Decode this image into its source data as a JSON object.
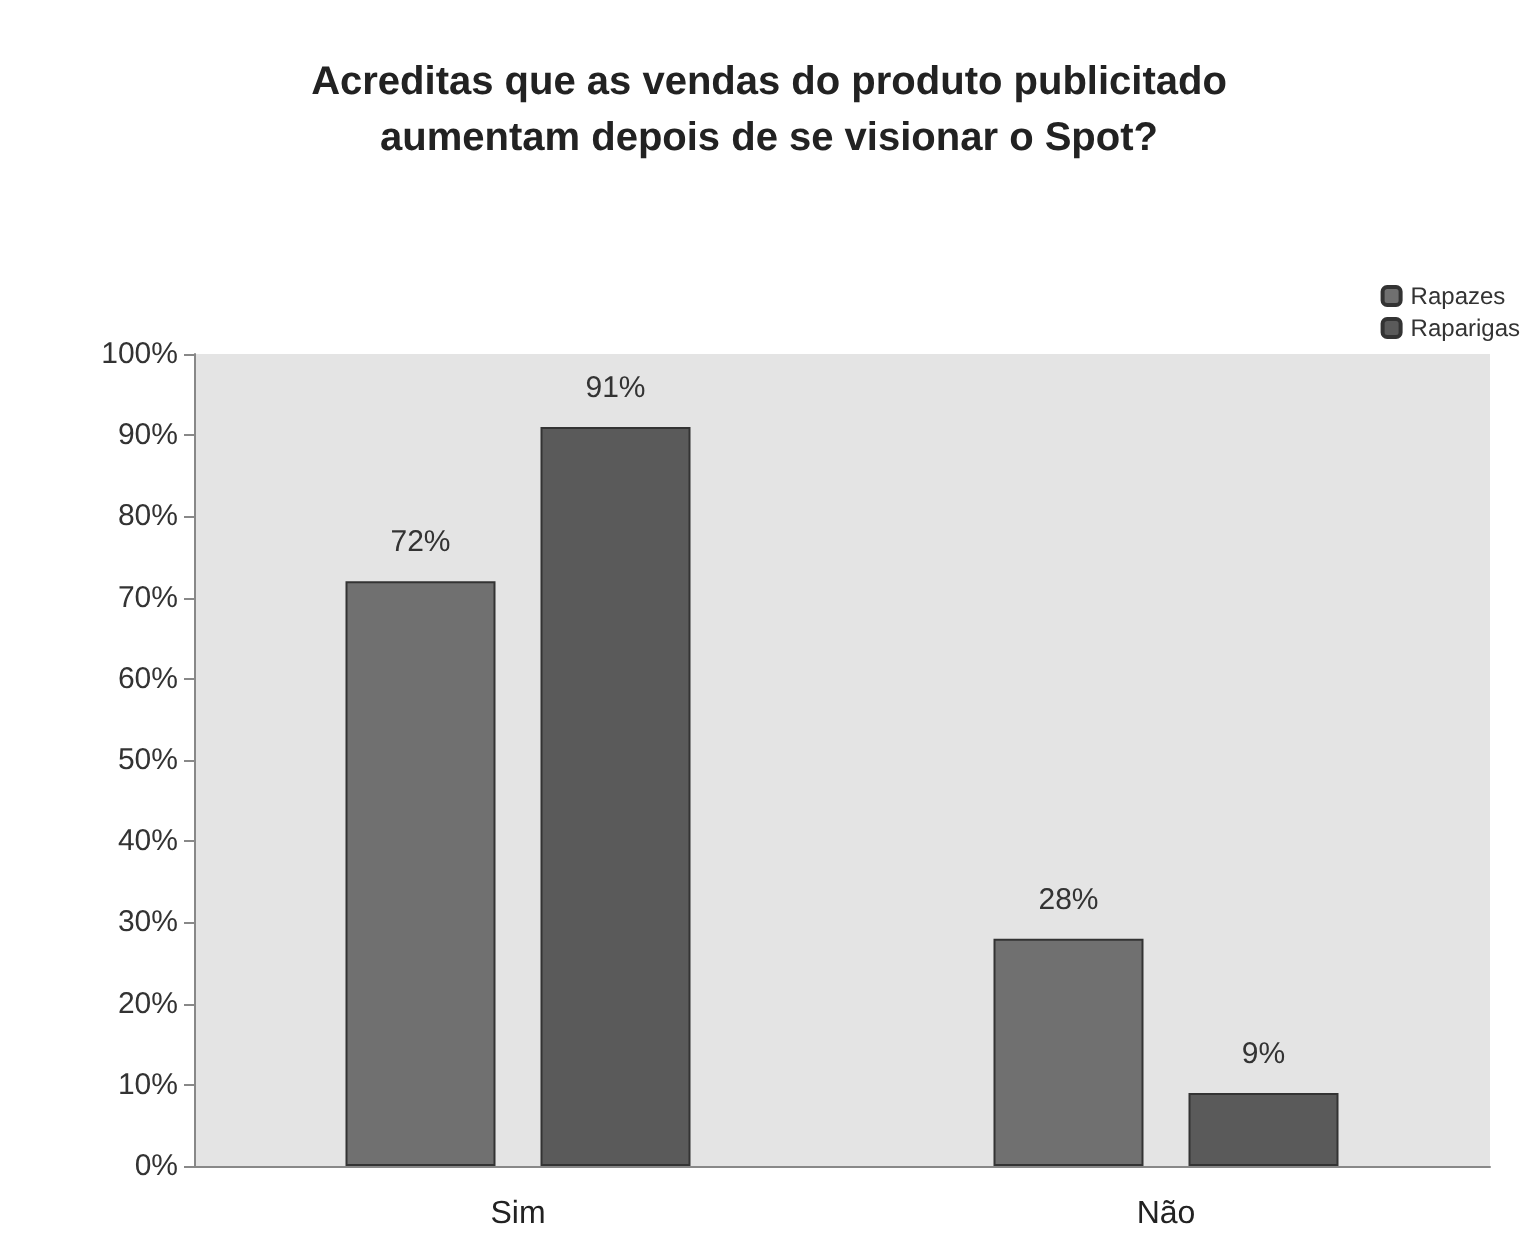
{
  "chart_data": {
    "type": "bar",
    "title": "Acreditas que as vendas do produto publicitado\naumentam depois de se visionar o Spot?",
    "categories": [
      "Sim",
      "Não"
    ],
    "series": [
      {
        "name": "Rapazes",
        "color": "#707070",
        "values": [
          72,
          28
        ],
        "value_labels": [
          "72%",
          "28%"
        ]
      },
      {
        "name": "Raparigas",
        "color": "#5a5a5a",
        "values": [
          91,
          9
        ],
        "value_labels": [
          "91%",
          "9%"
        ]
      }
    ],
    "ylim": [
      0,
      100
    ],
    "yticks": [
      {
        "value": 0,
        "label": "0%"
      },
      {
        "value": 10,
        "label": "10%"
      },
      {
        "value": 20,
        "label": "20%"
      },
      {
        "value": 30,
        "label": "30%"
      },
      {
        "value": 40,
        "label": "40%"
      },
      {
        "value": 50,
        "label": "50%"
      },
      {
        "value": 60,
        "label": "60%"
      },
      {
        "value": 70,
        "label": "70%"
      },
      {
        "value": 80,
        "label": "80%"
      },
      {
        "value": 90,
        "label": "90%"
      },
      {
        "value": 100,
        "label": "100%"
      }
    ],
    "grid": false,
    "legend": "top right"
  }
}
